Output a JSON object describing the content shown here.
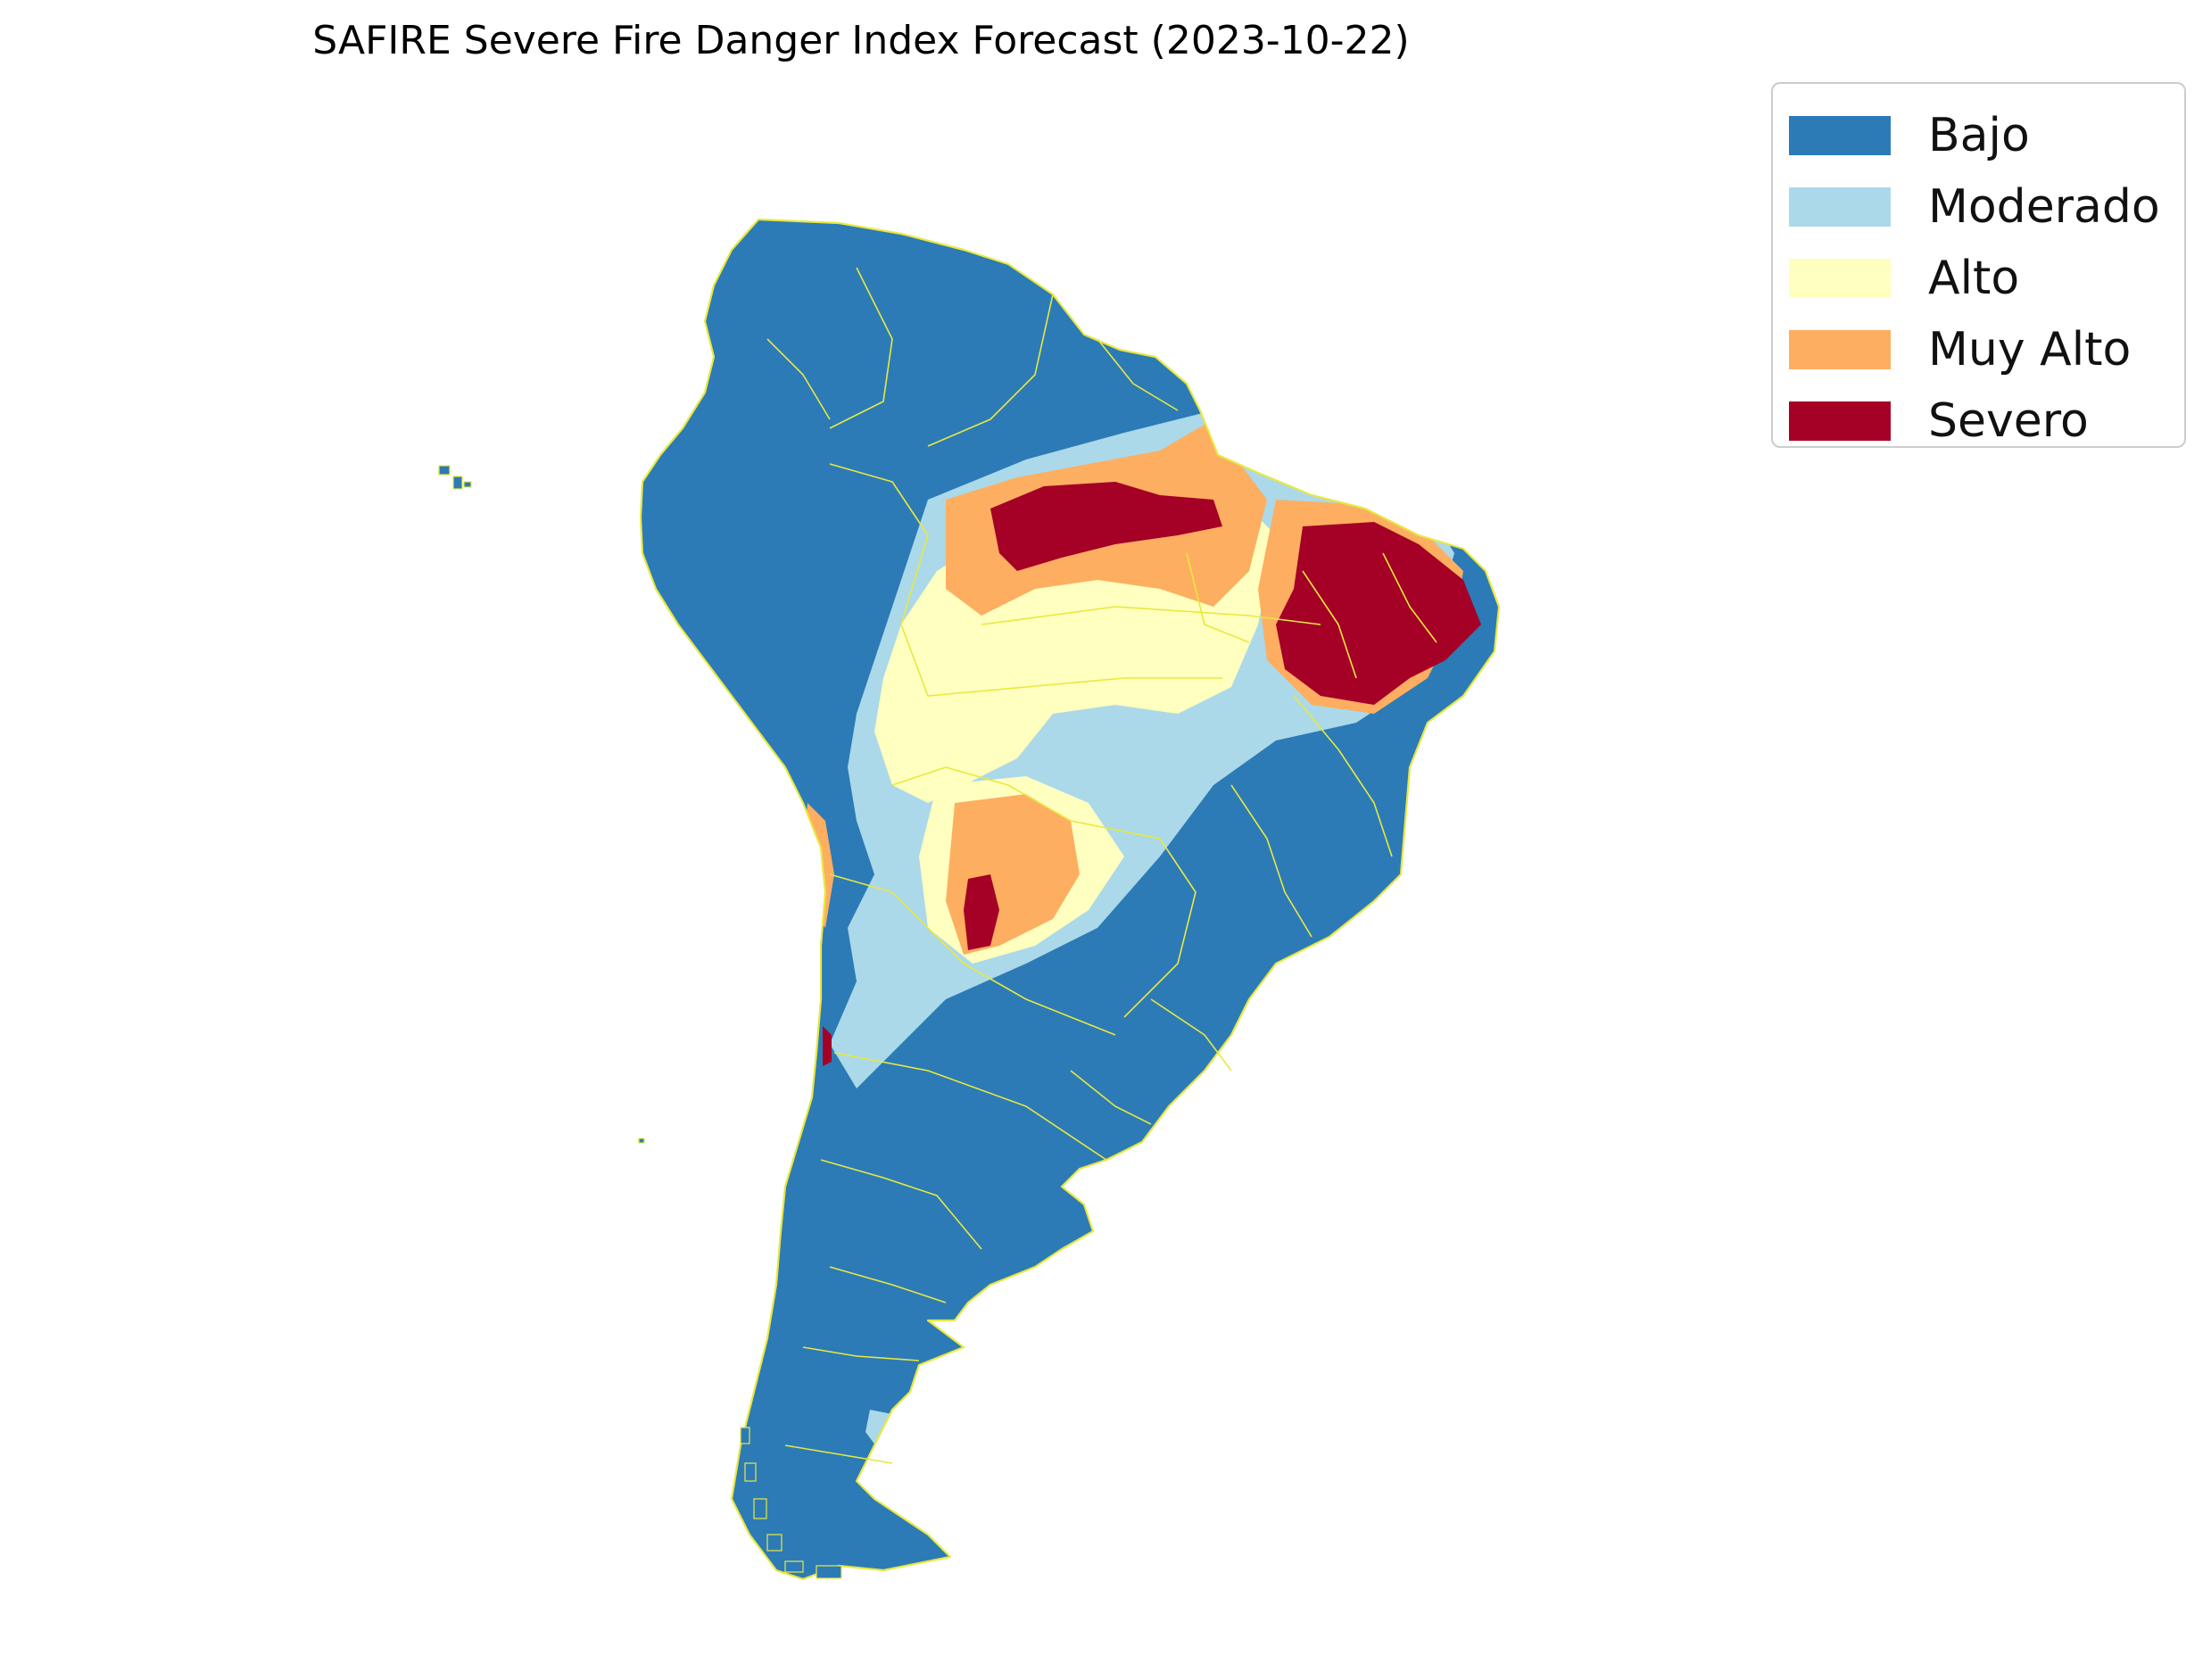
{
  "map": {
    "title": "SAFIRE Severe Fire Danger Index Forecast (2023-10-22)",
    "subject": "South America",
    "border_color": "#e8e840",
    "background_color": "#ffffff"
  },
  "legend": {
    "placement": "top-right",
    "items": [
      {
        "label": "Bajo",
        "color": "#2c7bb6"
      },
      {
        "label": "Moderado",
        "color": "#abd9e9"
      },
      {
        "label": "Alto",
        "color": "#ffffbf"
      },
      {
        "label": "Muy Alto",
        "color": "#fdae61"
      },
      {
        "label": "Severo",
        "color": "#a50026"
      }
    ]
  }
}
